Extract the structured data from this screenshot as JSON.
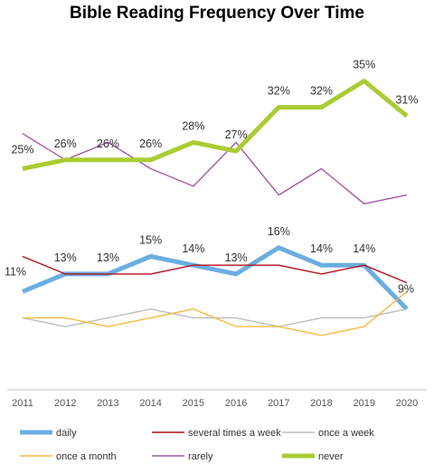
{
  "chart_data": {
    "type": "line",
    "title": "Bible Reading Frequency Over Time",
    "xlabel": "",
    "ylabel": "",
    "ylim": [
      0,
      40
    ],
    "x": [
      "2011",
      "2012",
      "2013",
      "2014",
      "2015",
      "2016",
      "2017",
      "2018",
      "2019",
      "2020"
    ],
    "grid": false,
    "legend_position": "bottom",
    "series": [
      {
        "name": "daily",
        "color": "#6aaee0",
        "values": [
          11,
          13,
          13,
          15,
          14,
          13,
          16,
          14,
          14,
          9
        ],
        "labels": [
          "11%",
          "13%",
          "13%",
          "15%",
          "14%",
          "13%",
          "16%",
          "14%",
          "14%",
          "9%"
        ]
      },
      {
        "name": "several times a week",
        "color": "#b5121b",
        "values": [
          15,
          13,
          13,
          13,
          14,
          14,
          14,
          13,
          14,
          12
        ]
      },
      {
        "name": "once a week",
        "color": "#bdbdbd",
        "values": [
          8,
          7,
          8,
          9,
          8,
          8,
          7,
          8,
          8,
          9
        ]
      },
      {
        "name": "once a month",
        "color": "#f5b942",
        "values": [
          8,
          8,
          7,
          8,
          9,
          7,
          7,
          6,
          7,
          11
        ]
      },
      {
        "name": "rarely",
        "color": "#a559a5",
        "values": [
          29,
          26,
          28,
          25,
          23,
          28,
          22,
          25,
          21,
          22
        ]
      },
      {
        "name": "never",
        "color": "#aacc33",
        "values": [
          25,
          26,
          26,
          26,
          28,
          27,
          32,
          32,
          35,
          31
        ],
        "labels": [
          "25%",
          "26%",
          "26%",
          "26%",
          "28%",
          "27%",
          "32%",
          "32%",
          "35%",
          "31%"
        ]
      }
    ]
  }
}
